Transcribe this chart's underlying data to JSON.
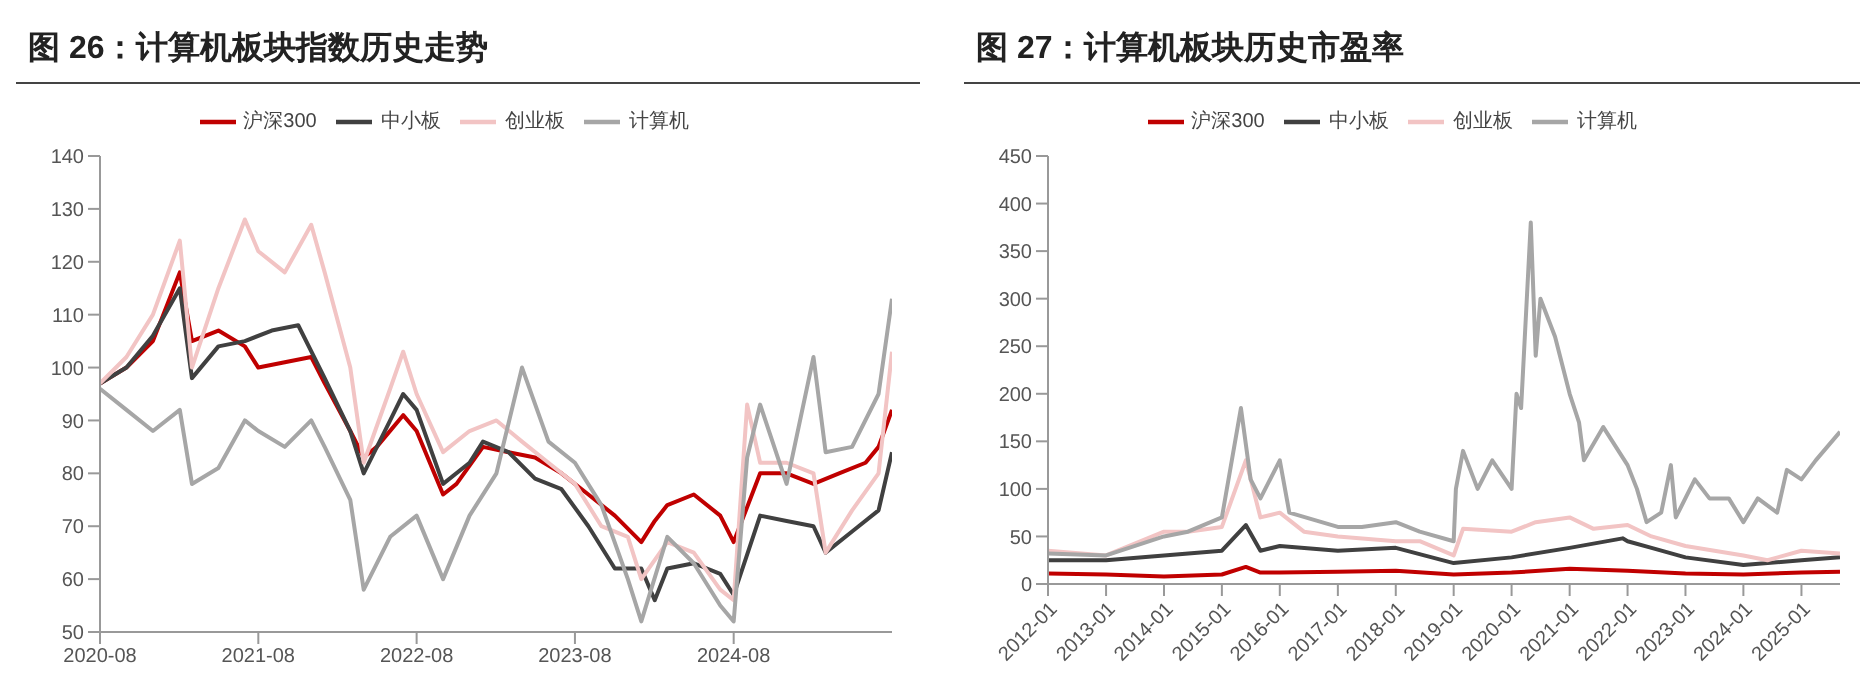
{
  "chart_data": [
    {
      "type": "line",
      "title": "图 26：计算机板块指数历史走势",
      "legend": "top",
      "grid": false,
      "marker": "none",
      "line_style": "solid",
      "xlim": [
        "2020-08",
        "2025-08"
      ],
      "xticks": [
        "2020-08",
        "2021-08",
        "2022-08",
        "2023-08",
        "2024-08"
      ],
      "ylim": [
        50,
        140
      ],
      "yticks": [
        50,
        60,
        70,
        80,
        90,
        100,
        110,
        120,
        130,
        140
      ],
      "series": [
        {
          "name": "沪深300",
          "color": "#c00000",
          "x": [
            "2020-08",
            "2020-10",
            "2020-12",
            "2021-02",
            "2021-03",
            "2021-05",
            "2021-07",
            "2021-08",
            "2021-10",
            "2021-12",
            "2022-01",
            "2022-03",
            "2022-04",
            "2022-05",
            "2022-07",
            "2022-08",
            "2022-10",
            "2022-11",
            "2023-01",
            "2023-03",
            "2023-05",
            "2023-07",
            "2023-09",
            "2023-11",
            "2024-01",
            "2024-02",
            "2024-03",
            "2024-05",
            "2024-07",
            "2024-08",
            "2024-10",
            "2024-12",
            "2025-02",
            "2025-04",
            "2025-06",
            "2025-07",
            "2025-08"
          ],
          "values": [
            97,
            100,
            105,
            118,
            105,
            107,
            104,
            100,
            101,
            102,
            97,
            88,
            83,
            85,
            91,
            88,
            76,
            78,
            85,
            84,
            83,
            80,
            76,
            72,
            67,
            71,
            74,
            76,
            72,
            67,
            80,
            80,
            78,
            80,
            82,
            85,
            92
          ]
        },
        {
          "name": "中小板",
          "color": "#404040",
          "x": [
            "2020-08",
            "2020-10",
            "2020-12",
            "2021-02",
            "2021-03",
            "2021-05",
            "2021-07",
            "2021-09",
            "2021-11",
            "2022-01",
            "2022-03",
            "2022-04",
            "2022-06",
            "2022-07",
            "2022-08",
            "2022-10",
            "2022-12",
            "2023-01",
            "2023-03",
            "2023-05",
            "2023-07",
            "2023-09",
            "2023-11",
            "2024-01",
            "2024-02",
            "2024-03",
            "2024-05",
            "2024-07",
            "2024-08",
            "2024-10",
            "2024-12",
            "2025-02",
            "2025-03",
            "2025-05",
            "2025-07",
            "2025-08"
          ],
          "values": [
            97,
            100,
            106,
            115,
            98,
            104,
            105,
            107,
            108,
            98,
            88,
            80,
            90,
            95,
            92,
            78,
            82,
            86,
            84,
            79,
            77,
            70,
            62,
            62,
            56,
            62,
            63,
            61,
            57,
            72,
            71,
            70,
            65,
            69,
            73,
            84
          ]
        },
        {
          "name": "创业板",
          "color": "#f2c4c4",
          "x": [
            "2020-08",
            "2020-10",
            "2020-12",
            "2021-02",
            "2021-03",
            "2021-05",
            "2021-07",
            "2021-08",
            "2021-10",
            "2021-12",
            "2022-01",
            "2022-03",
            "2022-04",
            "2022-06",
            "2022-07",
            "2022-08",
            "2022-10",
            "2022-12",
            "2023-02",
            "2023-04",
            "2023-06",
            "2023-08",
            "2023-10",
            "2023-12",
            "2024-01",
            "2024-03",
            "2024-05",
            "2024-07",
            "2024-08",
            "2024-09",
            "2024-10",
            "2024-12",
            "2025-02",
            "2025-03",
            "2025-05",
            "2025-07",
            "2025-08"
          ],
          "values": [
            97,
            102,
            110,
            124,
            100,
            115,
            128,
            122,
            118,
            127,
            118,
            100,
            82,
            96,
            103,
            95,
            84,
            88,
            90,
            86,
            82,
            78,
            70,
            68,
            60,
            67,
            65,
            58,
            56,
            93,
            82,
            82,
            80,
            65,
            73,
            80,
            103
          ]
        },
        {
          "name": "计算机",
          "color": "#a6a6a6",
          "x": [
            "2020-08",
            "2020-10",
            "2020-12",
            "2021-02",
            "2021-03",
            "2021-05",
            "2021-07",
            "2021-08",
            "2021-10",
            "2021-12",
            "2022-01",
            "2022-03",
            "2022-04",
            "2022-06",
            "2022-08",
            "2022-10",
            "2022-12",
            "2023-02",
            "2023-04",
            "2023-06",
            "2023-08",
            "2023-10",
            "2023-12",
            "2024-01",
            "2024-03",
            "2024-05",
            "2024-07",
            "2024-08",
            "2024-09",
            "2024-10",
            "2024-12",
            "2025-02",
            "2025-03",
            "2025-05",
            "2025-07",
            "2025-08"
          ],
          "values": [
            96,
            92,
            88,
            92,
            78,
            81,
            90,
            88,
            85,
            90,
            85,
            75,
            58,
            68,
            72,
            60,
            72,
            80,
            100,
            86,
            82,
            74,
            60,
            52,
            68,
            63,
            55,
            52,
            83,
            93,
            78,
            102,
            84,
            85,
            95,
            113
          ]
        }
      ]
    },
    {
      "type": "line",
      "title": "图 27：计算机板块历史市盈率",
      "legend": "top",
      "grid": false,
      "marker": "none",
      "line_style": "solid",
      "xlim": [
        "2012-01",
        "2025-09"
      ],
      "xticks": [
        "2012-01",
        "2013-01",
        "2014-01",
        "2015-01",
        "2016-01",
        "2017-01",
        "2018-01",
        "2019-01",
        "2020-01",
        "2021-01",
        "2022-01",
        "2023-01",
        "2024-01",
        "2025-01"
      ],
      "ylim": [
        0,
        450
      ],
      "yticks": [
        0,
        50,
        100,
        150,
        200,
        250,
        300,
        350,
        400,
        450
      ],
      "series": [
        {
          "name": "沪深300",
          "color": "#c00000",
          "x": [
            "2012-01",
            "2013-01",
            "2014-01",
            "2015-01",
            "2015-06",
            "2015-09",
            "2016-01",
            "2017-01",
            "2018-01",
            "2019-01",
            "2020-01",
            "2021-01",
            "2022-01",
            "2023-01",
            "2024-01",
            "2025-01",
            "2025-09"
          ],
          "values": [
            11,
            10,
            8,
            10,
            18,
            12,
            12,
            13,
            14,
            10,
            12,
            16,
            14,
            11,
            10,
            12,
            13
          ]
        },
        {
          "name": "中小板",
          "color": "#404040",
          "x": [
            "2012-01",
            "2013-01",
            "2014-01",
            "2015-01",
            "2015-06",
            "2015-09",
            "2016-01",
            "2017-01",
            "2018-01",
            "2019-01",
            "2020-01",
            "2021-01",
            "2021-12",
            "2022-01",
            "2022-06",
            "2023-01",
            "2024-01",
            "2025-01",
            "2025-09"
          ],
          "values": [
            25,
            25,
            30,
            35,
            62,
            35,
            40,
            35,
            38,
            22,
            28,
            38,
            48,
            45,
            38,
            28,
            20,
            25,
            28
          ]
        },
        {
          "name": "创业板",
          "color": "#f2c4c4",
          "x": [
            "2012-01",
            "2013-01",
            "2014-01",
            "2014-06",
            "2015-01",
            "2015-06",
            "2015-09",
            "2016-01",
            "2016-06",
            "2017-01",
            "2018-01",
            "2018-06",
            "2019-01",
            "2019-03",
            "2020-01",
            "2020-06",
            "2021-01",
            "2021-06",
            "2022-01",
            "2022-06",
            "2023-01",
            "2024-01",
            "2024-06",
            "2025-01",
            "2025-09"
          ],
          "values": [
            35,
            30,
            55,
            55,
            60,
            130,
            70,
            75,
            55,
            50,
            45,
            45,
            30,
            58,
            55,
            65,
            70,
            58,
            62,
            50,
            40,
            30,
            25,
            35,
            32
          ]
        },
        {
          "name": "计算机",
          "color": "#a6a6a6",
          "x": [
            "2012-01",
            "2013-01",
            "2014-01",
            "2014-06",
            "2015-01",
            "2015-05",
            "2015-07",
            "2015-09",
            "2016-01",
            "2016-03",
            "2017-01",
            "2017-06",
            "2018-01",
            "2018-06",
            "2019-01",
            "2019-01-15",
            "2019-03",
            "2019-06",
            "2019-09",
            "2020-01",
            "2020-02",
            "2020-03",
            "2020-05",
            "2020-06",
            "2020-07",
            "2020-10",
            "2021-01",
            "2021-03",
            "2021-04",
            "2021-08",
            "2022-01",
            "2022-03",
            "2022-05",
            "2022-08",
            "2022-10",
            "2022-11",
            "2023-03",
            "2023-06",
            "2023-10",
            "2024-01",
            "2024-04",
            "2024-08",
            "2024-10",
            "2025-01",
            "2025-04",
            "2025-09"
          ],
          "values": [
            32,
            30,
            50,
            55,
            70,
            185,
            110,
            90,
            130,
            75,
            60,
            60,
            65,
            55,
            45,
            100,
            140,
            100,
            130,
            100,
            200,
            185,
            380,
            240,
            300,
            260,
            200,
            170,
            130,
            165,
            125,
            100,
            65,
            75,
            125,
            70,
            110,
            90,
            90,
            65,
            90,
            75,
            120,
            110,
            130,
            160
          ]
        }
      ]
    }
  ]
}
